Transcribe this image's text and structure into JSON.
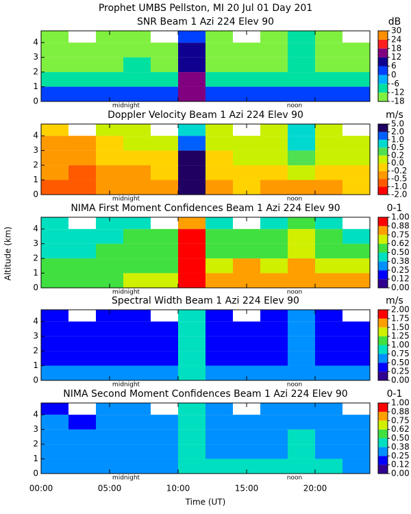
{
  "title": "Prophet  UMBS Pellston, MI  20 Jul 01 Day 201",
  "xlabel": "Time (UT)",
  "ylabel": "Altitude (km)",
  "xlim": [
    0,
    24
  ],
  "xticks": [
    {
      "value": 0,
      "label": "00:00"
    },
    {
      "value": 5,
      "label": "05:00"
    },
    {
      "value": 10,
      "label": "10:00"
    },
    {
      "value": 15,
      "label": "15:00"
    },
    {
      "value": 20,
      "label": "20:00"
    }
  ],
  "annotations": [
    {
      "text": "midnight",
      "x": 6.2
    },
    {
      "text": "noon",
      "x": 18.5
    }
  ],
  "chart_data": [
    {
      "type": "heatmap",
      "title": "SNR Beam 1 Azi 224 Elev 90",
      "unit": "dB",
      "ylim": [
        0,
        4.8
      ],
      "yticks": [
        0,
        1,
        2,
        3,
        4
      ],
      "xbins": [
        0,
        2,
        4,
        6,
        8,
        10,
        12,
        14,
        16,
        18,
        20,
        22,
        24
      ],
      "ybins": [
        0,
        1,
        2,
        3,
        4,
        4.8
      ],
      "zticks": [
        -18,
        -12,
        -6,
        0,
        6,
        12,
        18,
        24,
        30
      ],
      "colors": [
        "#80f040",
        "#00e0a0",
        "#00b0ff",
        "#0040ff",
        "#100090",
        "#800080",
        "#ff2020",
        "#ff9000"
      ],
      "values": [
        [
          3,
          3,
          4,
          5,
          4,
          14,
          3,
          2,
          3,
          4,
          3,
          2
        ],
        [
          -10,
          -12,
          -9,
          -8,
          -10,
          12,
          -11,
          -12,
          -10,
          -8,
          -9,
          -12
        ],
        [
          -14,
          -15,
          -13,
          -12,
          -14,
          8,
          -15,
          -15,
          -14,
          -10,
          -13,
          -15
        ],
        [
          -15,
          -16,
          -14,
          -15,
          -16,
          6,
          -16,
          -16,
          -15,
          -8,
          -14,
          -16
        ],
        [
          -16,
          null,
          -15,
          -16,
          null,
          4,
          -16,
          null,
          -16,
          -10,
          -15,
          null
        ]
      ]
    },
    {
      "type": "heatmap",
      "title": "Doppler Velocity Beam 1 Azi 224 Elev 90",
      "unit": "m/s",
      "ylim": [
        0,
        4.8
      ],
      "yticks": [
        0,
        1,
        2,
        3,
        4
      ],
      "xbins": [
        0,
        2,
        4,
        6,
        8,
        10,
        12,
        14,
        16,
        18,
        20,
        22,
        24
      ],
      "ybins": [
        0,
        1,
        2,
        3,
        4,
        4.8
      ],
      "zticks": [
        {
          "value": -2,
          "label": "-2.0"
        },
        {
          "value": -1,
          "label": "-1.0"
        },
        -0.5,
        -0.2,
        {
          "value": 0,
          "label": "0.0"
        },
        0.2,
        0.5,
        {
          "value": 1,
          "label": "1.0"
        },
        {
          "value": 2,
          "label": "2.0"
        },
        {
          "value": 5,
          "label": "5.0"
        }
      ],
      "colors": [
        "#ff0000",
        "#ff5a00",
        "#ff9900",
        "#ffd200",
        "#c8f000",
        "#50e050",
        "#00d8d0",
        "#0060ff",
        "#200060"
      ],
      "values": [
        [
          -0.6,
          -0.7,
          -0.4,
          -0.5,
          -0.3,
          3,
          -0.3,
          -0.2,
          -0.3,
          -0.4,
          -0.3,
          -0.2
        ],
        [
          -0.5,
          -0.6,
          -0.3,
          -0.3,
          -0.2,
          3,
          -0.2,
          -0.1,
          -0.2,
          0.1,
          -0.2,
          -0.1
        ],
        [
          -0.4,
          -0.5,
          -0.2,
          -0.1,
          -0.1,
          2.5,
          -0.1,
          0.1,
          0.1,
          0.3,
          0.1,
          0.1
        ],
        [
          -0.3,
          -0.4,
          -0.1,
          0.1,
          0.1,
          1.5,
          0.1,
          0.1,
          0.1,
          0.6,
          0.1,
          0.1
        ],
        [
          -0.2,
          null,
          0.1,
          0.1,
          null,
          0.8,
          0.1,
          null,
          0.1,
          0.7,
          0.1,
          null
        ]
      ]
    },
    {
      "type": "heatmap",
      "title": "NIMA First Moment Confidences Beam 1 Azi 224 Elev 90",
      "unit": "0-1",
      "ylim": [
        0,
        4.8
      ],
      "yticks": [
        0,
        1,
        2,
        3,
        4
      ],
      "xbins": [
        0,
        2,
        4,
        6,
        8,
        10,
        12,
        14,
        16,
        18,
        20,
        22,
        24
      ],
      "ybins": [
        0,
        1,
        2,
        3,
        4,
        4.8
      ],
      "zticks": [
        {
          "value": 0,
          "label": "0.00"
        },
        0.12,
        0.25,
        0.38,
        {
          "value": 0.5,
          "label": "0.50"
        },
        0.62,
        0.75,
        0.88,
        {
          "value": 1,
          "label": "1.00"
        }
      ],
      "colors": [
        "#300090",
        "#0000ff",
        "#0090ff",
        "#00e0c0",
        "#40e040",
        "#d0f000",
        "#ffa000",
        "#ff0000"
      ],
      "values": [
        [
          0.6,
          0.55,
          0.6,
          0.65,
          0.7,
          0.95,
          0.8,
          0.85,
          0.8,
          0.85,
          0.8,
          0.75
        ],
        [
          0.55,
          0.5,
          0.55,
          0.6,
          0.6,
          0.95,
          0.7,
          0.75,
          0.7,
          0.8,
          0.7,
          0.65
        ],
        [
          0.45,
          0.45,
          0.5,
          0.5,
          0.55,
          0.9,
          0.55,
          0.55,
          0.55,
          0.7,
          0.55,
          0.5
        ],
        [
          0.45,
          0.4,
          0.45,
          0.5,
          0.5,
          0.9,
          0.5,
          0.5,
          0.5,
          0.65,
          0.5,
          0.45
        ],
        [
          0.4,
          null,
          0.45,
          0.45,
          null,
          0.85,
          0.45,
          null,
          0.45,
          0.6,
          0.45,
          null
        ]
      ]
    },
    {
      "type": "heatmap",
      "title": "Spectral Width Beam 1 Azi 224 Elev 90",
      "unit": "m/s",
      "ylim": [
        0,
        4.8
      ],
      "yticks": [
        0,
        1,
        2,
        3,
        4
      ],
      "xbins": [
        0,
        2,
        4,
        6,
        8,
        10,
        12,
        14,
        16,
        18,
        20,
        22,
        24
      ],
      "ybins": [
        0,
        1,
        2,
        3,
        4,
        4.8
      ],
      "zticks": [
        {
          "value": 0,
          "label": "0.00"
        },
        0.25,
        {
          "value": 0.5,
          "label": "0.50"
        },
        0.75,
        {
          "value": 1,
          "label": "1.00"
        },
        1.25,
        {
          "value": 1.5,
          "label": "1.50"
        },
        1.75,
        {
          "value": 2,
          "label": "2.00"
        }
      ],
      "colors": [
        "#300090",
        "#0000ff",
        "#0090ff",
        "#00e0c0",
        "#40e040",
        "#d0f000",
        "#ffa000",
        "#ff0000"
      ],
      "values": [
        [
          0.6,
          0.55,
          0.5,
          0.5,
          0.55,
          0.85,
          0.5,
          0.5,
          0.55,
          0.6,
          0.55,
          0.5
        ],
        [
          0.35,
          0.3,
          0.35,
          0.3,
          0.35,
          0.8,
          0.3,
          0.35,
          0.35,
          0.5,
          0.35,
          0.3
        ],
        [
          0.3,
          0.3,
          0.3,
          0.3,
          0.3,
          0.8,
          0.3,
          0.3,
          0.3,
          0.55,
          0.3,
          0.3
        ],
        [
          0.3,
          0.3,
          0.3,
          0.35,
          0.3,
          0.85,
          0.3,
          0.3,
          0.3,
          0.6,
          0.3,
          0.3
        ],
        [
          0.3,
          null,
          0.3,
          0.3,
          null,
          0.8,
          0.3,
          null,
          0.3,
          0.55,
          0.3,
          null
        ]
      ]
    },
    {
      "type": "heatmap",
      "title": "NIMA Second Moment Confidences Beam 1 Azi 224 Elev 90",
      "unit": "0-1",
      "ylim": [
        0,
        4.8
      ],
      "yticks": [
        0,
        1,
        2,
        3,
        4
      ],
      "xbins": [
        0,
        2,
        4,
        6,
        8,
        10,
        12,
        14,
        16,
        18,
        20,
        22,
        24
      ],
      "ybins": [
        0,
        1,
        2,
        3,
        4,
        4.8
      ],
      "zticks": [
        {
          "value": 0,
          "label": "0.00"
        },
        0.12,
        0.25,
        0.38,
        {
          "value": 0.5,
          "label": "0.50"
        },
        0.62,
        0.75,
        0.88,
        {
          "value": 1,
          "label": "1.00"
        }
      ],
      "colors": [
        "#300090",
        "#0000ff",
        "#0090ff",
        "#00e0c0",
        "#40e040",
        "#d0f000",
        "#ffa000",
        "#ff0000"
      ],
      "values": [
        [
          0.3,
          0.3,
          0.35,
          0.35,
          0.35,
          0.45,
          0.4,
          0.4,
          0.4,
          0.4,
          0.4,
          0.35
        ],
        [
          0.3,
          0.28,
          0.3,
          0.3,
          0.3,
          0.45,
          0.35,
          0.35,
          0.35,
          0.4,
          0.35,
          0.3
        ],
        [
          0.25,
          0.25,
          0.3,
          0.3,
          0.3,
          0.4,
          0.3,
          0.3,
          0.3,
          0.38,
          0.3,
          0.28
        ],
        [
          0.25,
          0.22,
          0.25,
          0.28,
          0.28,
          0.4,
          0.28,
          0.28,
          0.28,
          0.35,
          0.28,
          0.25
        ],
        [
          0.22,
          null,
          0.25,
          0.25,
          null,
          0.38,
          0.25,
          null,
          0.25,
          0.35,
          0.25,
          null
        ]
      ]
    }
  ]
}
